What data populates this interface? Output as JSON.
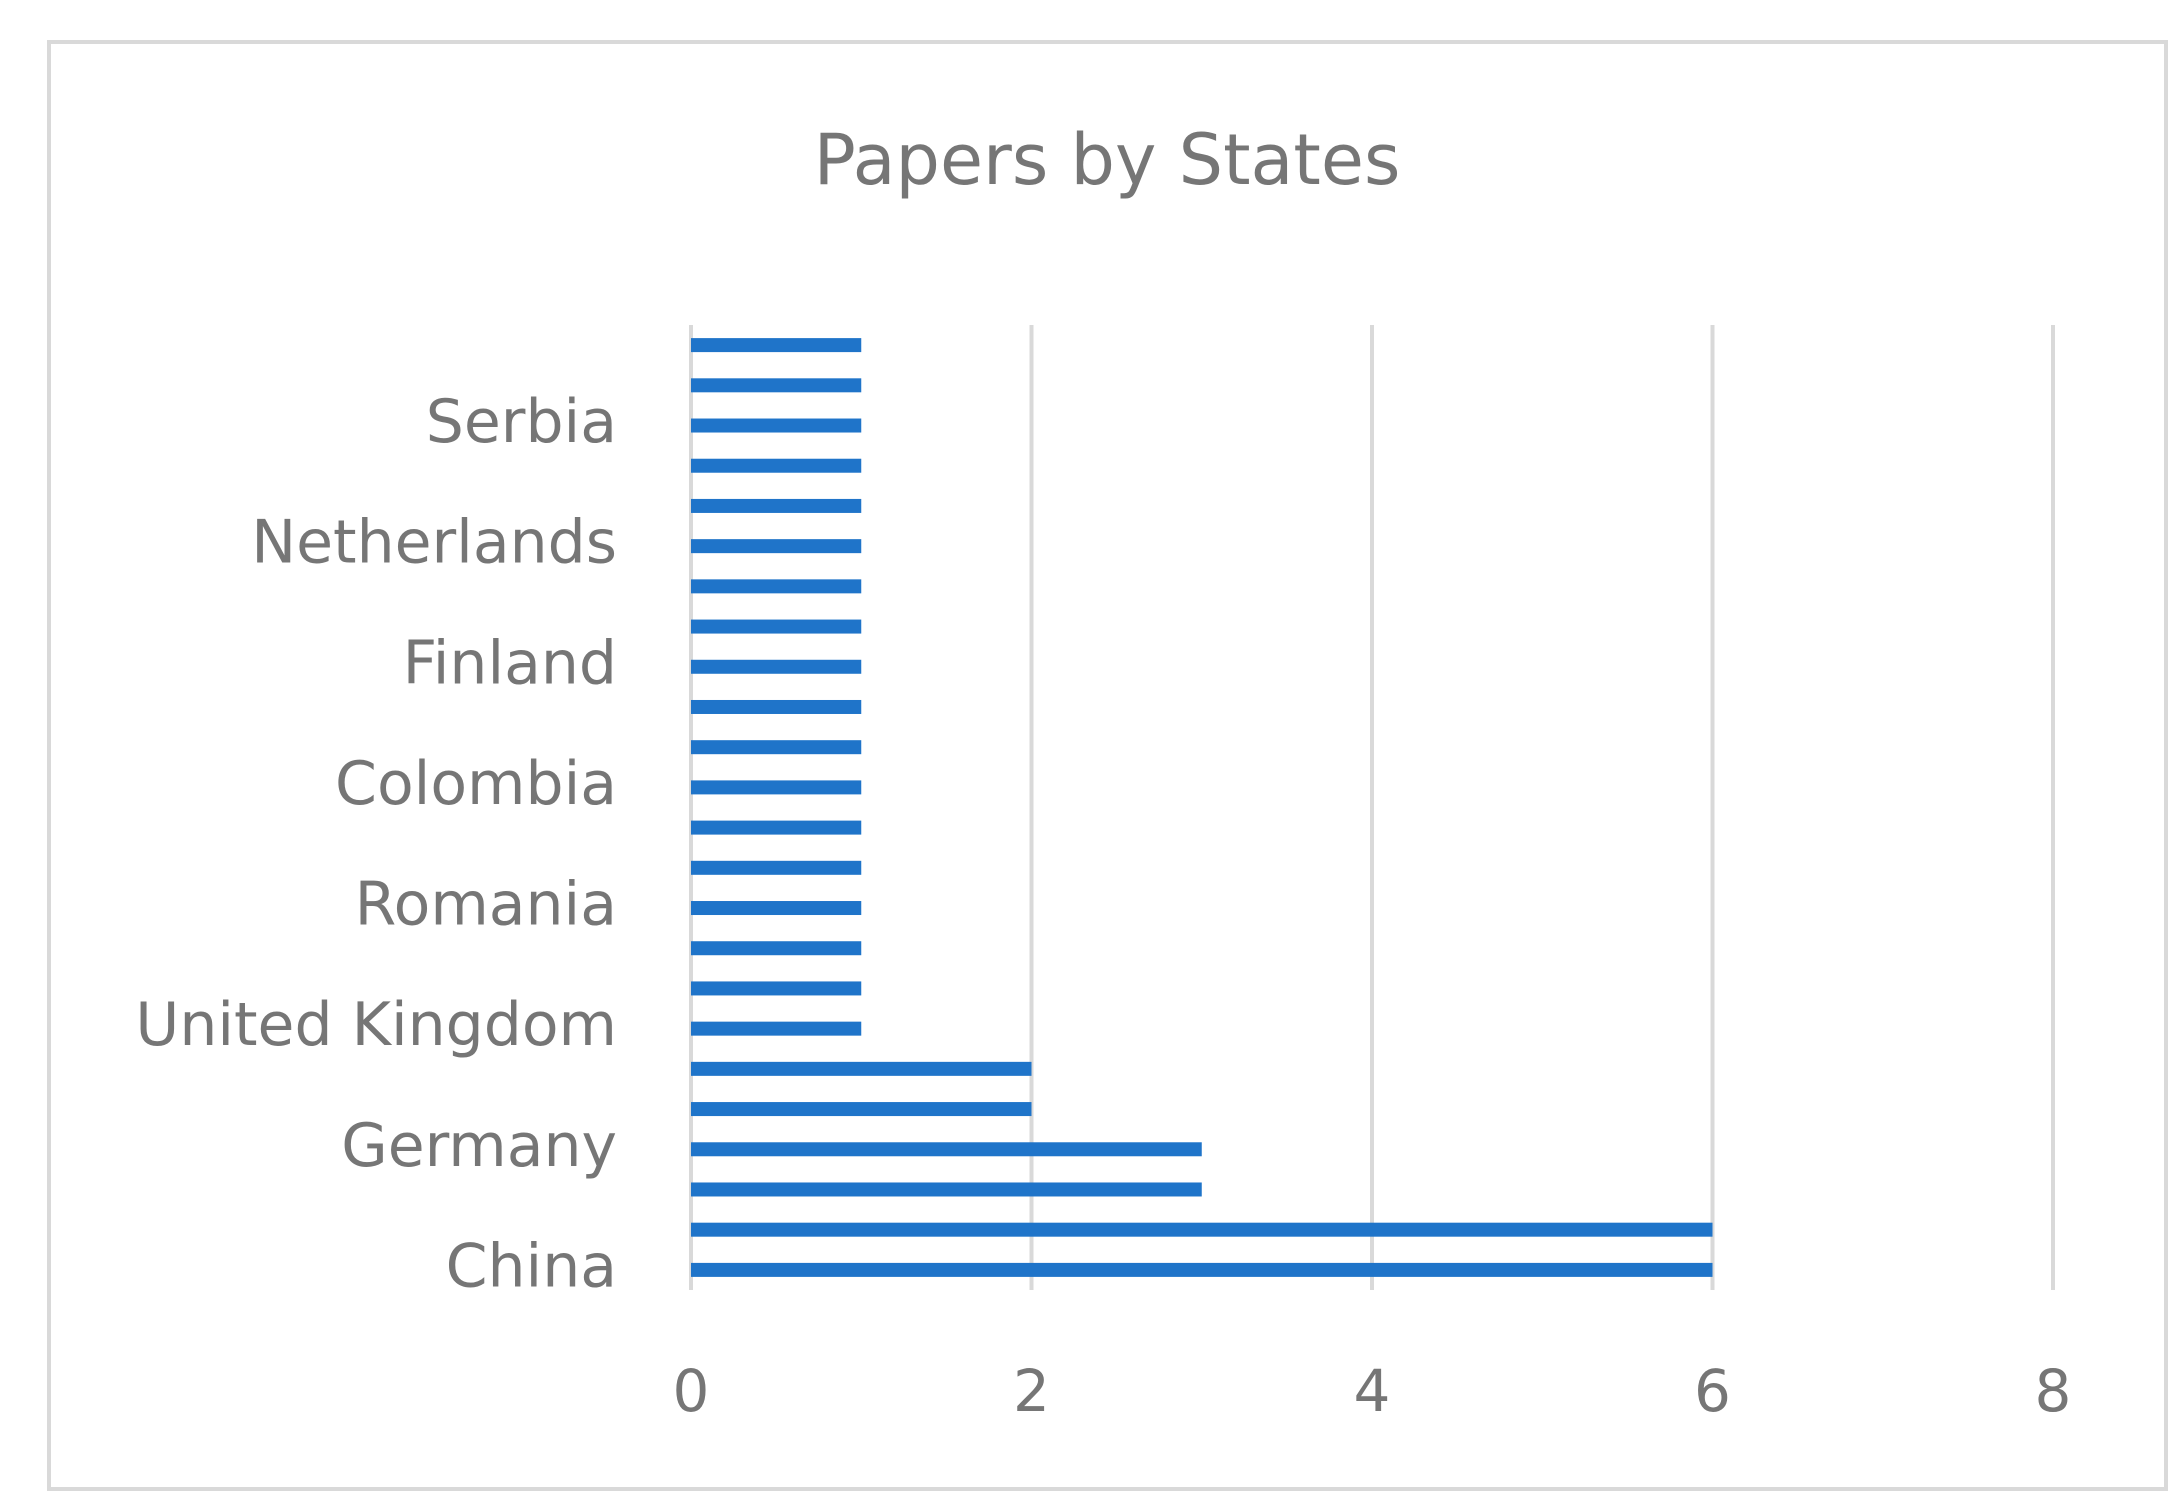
{
  "chart_data": {
    "type": "barh",
    "title": "Papers by States",
    "categories": [
      "China",
      null,
      null,
      "Germany",
      null,
      null,
      "United Kingdom",
      null,
      null,
      "Romania",
      null,
      null,
      "Colombia",
      null,
      null,
      "Finland",
      null,
      null,
      "Netherlands",
      null,
      null,
      "Serbia",
      null,
      null
    ],
    "values": [
      6,
      6,
      3,
      3,
      2,
      2,
      1,
      1,
      1,
      1,
      1,
      1,
      1,
      1,
      1,
      1,
      1,
      1,
      1,
      1,
      1,
      1,
      1,
      1
    ],
    "color": "#1f74c9",
    "xlim": [
      0,
      8
    ],
    "xticks": [
      0,
      2,
      4,
      6,
      8
    ],
    "grid": true
  }
}
